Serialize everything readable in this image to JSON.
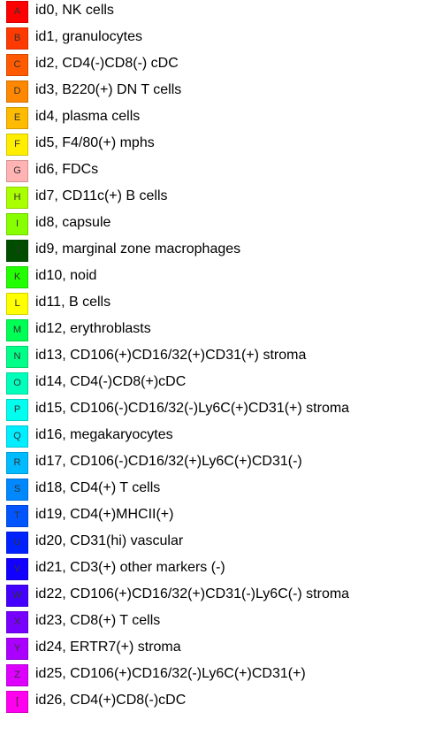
{
  "legend": {
    "items": [
      {
        "letter": "A",
        "label": "id0, NK cells",
        "color": "#ff0000"
      },
      {
        "letter": "B",
        "label": "id1, granulocytes",
        "color": "#ff3a00"
      },
      {
        "letter": "C",
        "label": "id2, CD4(-)CD8(-) cDC",
        "color": "#ff5a00"
      },
      {
        "letter": "D",
        "label": "id3, B220(+) DN T cells",
        "color": "#ff8800"
      },
      {
        "letter": "E",
        "label": "id4, plasma cells",
        "color": "#ffbb00"
      },
      {
        "letter": "F",
        "label": "id5, F4/80(+) mphs",
        "color": "#ffee00"
      },
      {
        "letter": "G",
        "label": "id6, FDCs",
        "color": "#ffb3b3"
      },
      {
        "letter": "H",
        "label": "id7, CD11c(+) B cells",
        "color": "#aaff00"
      },
      {
        "letter": "I",
        "label": "id8, capsule",
        "color": "#88ff00"
      },
      {
        "letter": "J",
        "label": "id9, marginal zone macrophages",
        "color": "#004d00"
      },
      {
        "letter": "K",
        "label": "id10, noid",
        "color": "#22ff00"
      },
      {
        "letter": "L",
        "label": "id11, B cells",
        "color": "#ffff00"
      },
      {
        "letter": "M",
        "label": "id12, erythroblasts",
        "color": "#00ff55"
      },
      {
        "letter": "N",
        "label": "id13, CD106(+)CD16/32(+)CD31(+) stroma",
        "color": "#00ff88"
      },
      {
        "letter": "O",
        "label": "id14, CD4(-)CD8(+)cDC",
        "color": "#00ffbb"
      },
      {
        "letter": "P",
        "label": "id15, CD106(-)CD16/32(-)Ly6C(+)CD31(+) stroma",
        "color": "#00ffee"
      },
      {
        "letter": "Q",
        "label": "id16, megakaryocytes",
        "color": "#00eeff"
      },
      {
        "letter": "R",
        "label": "id17, CD106(-)CD16/32(+)Ly6C(+)CD31(-)",
        "color": "#00bbff"
      },
      {
        "letter": "S",
        "label": "id18, CD4(+) T cells",
        "color": "#0088ff"
      },
      {
        "letter": "T",
        "label": "id19, CD4(+)MHCII(+)",
        "color": "#0055ff"
      },
      {
        "letter": "U",
        "label": "id20, CD31(hi) vascular",
        "color": "#0022ff"
      },
      {
        "letter": "V",
        "label": "id21, CD3(+) other markers (-)",
        "color": "#1100ff"
      },
      {
        "letter": "W",
        "label": "id22, CD106(+)CD16/32(+)CD31(-)Ly6C(-) stroma",
        "color": "#4400ff"
      },
      {
        "letter": "X",
        "label": "id23, CD8(+) T cells",
        "color": "#7700ff"
      },
      {
        "letter": "Y",
        "label": "id24, ERTR7(+) stroma",
        "color": "#aa00ff"
      },
      {
        "letter": "Z",
        "label": "id25, CD106(+)CD16/32(-)Ly6C(+)CD31(+)",
        "color": "#dd00ff"
      },
      {
        "letter": "[",
        "label": "id26, CD4(+)CD8(-)cDC",
        "color": "#ff00ee"
      }
    ]
  }
}
